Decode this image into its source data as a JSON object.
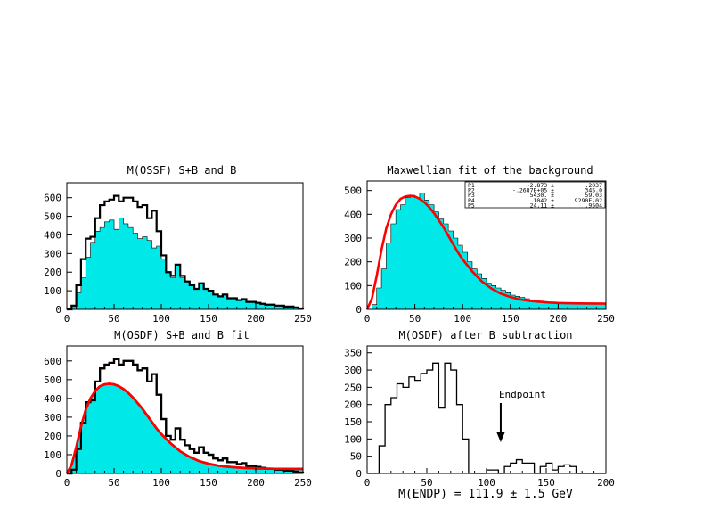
{
  "chart_data": [
    {
      "type": "histogram",
      "title": "M(OSSF)  S+B and B",
      "xlim": [
        0,
        250
      ],
      "ylim": [
        0,
        680
      ],
      "xticks": [
        "0",
        "50",
        "100",
        "150",
        "200",
        "250"
      ],
      "yticks": [
        "0",
        "100",
        "200",
        "300",
        "400",
        "500",
        "600"
      ],
      "bin_width": 5,
      "series": [
        {
          "name": "",
          "style": "filled",
          "color": "#00e8e8",
          "values": [
            0,
            15,
            90,
            170,
            280,
            360,
            420,
            440,
            470,
            480,
            430,
            490,
            460,
            440,
            410,
            380,
            390,
            370,
            330,
            340,
            270,
            200,
            170,
            240,
            170,
            150,
            130,
            110,
            140,
            110,
            100,
            80,
            70,
            80,
            60,
            60,
            50,
            55,
            40,
            40,
            35,
            30,
            25,
            25,
            20,
            20,
            15,
            15,
            10,
            5
          ]
        },
        {
          "name": "",
          "style": "step",
          "color": "#000000",
          "values": [
            0,
            20,
            130,
            270,
            380,
            390,
            490,
            560,
            580,
            590,
            610,
            580,
            600,
            600,
            580,
            550,
            560,
            490,
            530,
            420,
            290,
            200,
            180,
            240,
            180,
            150,
            130,
            110,
            140,
            110,
            100,
            80,
            70,
            80,
            60,
            60,
            50,
            55,
            40,
            40,
            35,
            30,
            25,
            25,
            20,
            20,
            15,
            15,
            10,
            5
          ]
        }
      ]
    },
    {
      "type": "histogram",
      "title": "Maxwellian fit of the background",
      "xlim": [
        0,
        250
      ],
      "ylim": [
        0,
        540
      ],
      "xticks": [
        "0",
        "50",
        "100",
        "150",
        "200",
        "250"
      ],
      "yticks": [
        "0",
        "100",
        "200",
        "300",
        "400",
        "500"
      ],
      "bin_width": 5,
      "series": [
        {
          "name": "",
          "style": "filled",
          "color": "#00e8e8",
          "values": [
            0,
            20,
            90,
            170,
            280,
            360,
            420,
            440,
            470,
            480,
            470,
            490,
            460,
            440,
            410,
            380,
            360,
            330,
            300,
            270,
            240,
            200,
            170,
            150,
            130,
            110,
            100,
            90,
            80,
            70,
            60,
            55,
            50,
            45,
            40,
            38,
            35,
            32,
            30,
            28,
            27,
            26,
            25,
            25,
            24,
            24,
            24,
            24,
            24,
            24
          ]
        },
        {
          "name": "Maxwellian fit",
          "style": "line",
          "color": "#ff0000",
          "x": [
            0,
            5,
            10,
            15,
            20,
            25,
            30,
            35,
            40,
            45,
            50,
            55,
            60,
            65,
            70,
            75,
            80,
            85,
            90,
            95,
            100,
            110,
            120,
            130,
            140,
            150,
            160,
            170,
            180,
            190,
            200,
            220,
            250
          ],
          "values": [
            0,
            45,
            140,
            250,
            340,
            400,
            440,
            465,
            475,
            478,
            475,
            465,
            450,
            430,
            405,
            375,
            345,
            310,
            275,
            240,
            210,
            160,
            118,
            88,
            66,
            52,
            42,
            36,
            32,
            29,
            27,
            25,
            24
          ]
        }
      ],
      "fit_stats": [
        {
          "name": "P1",
          "value": "-2.873 ±",
          "error": ".2037"
        },
        {
          "name": "P2",
          "value": "-.2687E+05 ±",
          "error": "345.0"
        },
        {
          "name": "P3",
          "value": "5430. ±",
          "error": "59.03"
        },
        {
          "name": "P4",
          "value": ".1042 ±",
          "error": ".9290E-02"
        },
        {
          "name": "P5",
          "value": "24.11 ±",
          "error": ".9504"
        }
      ]
    },
    {
      "type": "histogram",
      "title": "M(OSDF)  S+B and B fit",
      "xlim": [
        0,
        250
      ],
      "ylim": [
        0,
        680
      ],
      "xticks": [
        "0",
        "50",
        "100",
        "150",
        "200",
        "250"
      ],
      "yticks": [
        "0",
        "100",
        "200",
        "300",
        "400",
        "500",
        "600"
      ],
      "bin_width": 5,
      "series": [
        {
          "name": "",
          "style": "step",
          "color": "#000000",
          "values": [
            0,
            20,
            130,
            270,
            380,
            390,
            490,
            560,
            580,
            590,
            610,
            580,
            600,
            600,
            580,
            550,
            560,
            490,
            530,
            420,
            290,
            200,
            180,
            240,
            180,
            150,
            130,
            110,
            140,
            110,
            100,
            80,
            70,
            80,
            60,
            60,
            50,
            55,
            40,
            40,
            35,
            30,
            25,
            25,
            20,
            20,
            15,
            15,
            10,
            5
          ]
        },
        {
          "name": "B fit",
          "style": "filled-curve",
          "color": "#00e8e8",
          "line_color": "#ff0000",
          "x": [
            0,
            5,
            10,
            15,
            20,
            25,
            30,
            35,
            40,
            45,
            50,
            55,
            60,
            65,
            70,
            75,
            80,
            85,
            90,
            95,
            100,
            110,
            120,
            130,
            140,
            150,
            160,
            170,
            180,
            190,
            200,
            220,
            250
          ],
          "values": [
            0,
            45,
            140,
            250,
            340,
            400,
            440,
            465,
            475,
            478,
            475,
            465,
            450,
            430,
            405,
            375,
            345,
            310,
            275,
            240,
            210,
            160,
            118,
            88,
            66,
            52,
            42,
            36,
            32,
            29,
            27,
            25,
            24
          ]
        }
      ]
    },
    {
      "type": "histogram",
      "title": "M(OSDF) after B subtraction",
      "xlim": [
        0,
        200
      ],
      "ylim": [
        0,
        370
      ],
      "xticks": [
        "0",
        "50",
        "100",
        "150",
        "200"
      ],
      "yticks": [
        "0",
        "50",
        "100",
        "150",
        "200",
        "250",
        "300",
        "350"
      ],
      "bin_width": 5,
      "series": [
        {
          "name": "",
          "style": "step",
          "color": "#000000",
          "values": [
            0,
            0,
            80,
            200,
            220,
            260,
            250,
            280,
            270,
            290,
            300,
            320,
            190,
            320,
            300,
            200,
            100,
            0,
            0,
            0,
            10,
            10,
            0,
            20,
            30,
            40,
            30,
            30,
            0,
            20,
            30,
            10,
            20,
            25,
            20,
            0,
            0,
            0,
            0,
            0
          ]
        }
      ],
      "annotations": [
        {
          "text": "Endpoint",
          "x": 111.9
        }
      ],
      "result": "M(ENDP) = 111.9 ± 1.5 GeV"
    }
  ]
}
